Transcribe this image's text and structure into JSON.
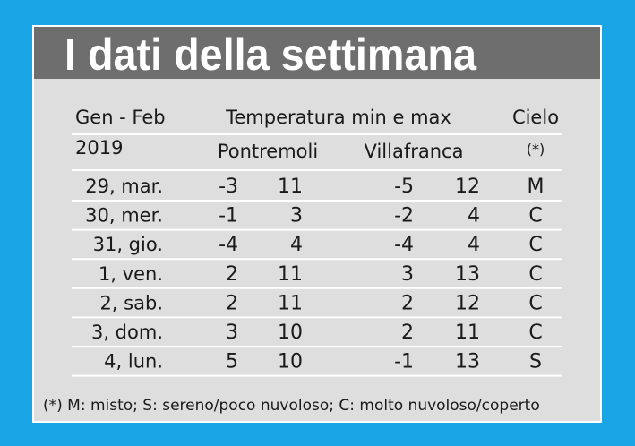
{
  "title": "I dati della settimana",
  "header": {
    "period": "Gen - Feb",
    "temperature": "Temperatura min e max",
    "sky": "Cielo"
  },
  "subheader": {
    "year": "2019",
    "locations": [
      "Pontremoli",
      "Villafranca"
    ],
    "sky_note": "(*)"
  },
  "rows": [
    [
      "29, mar.",
      -3,
      11,
      -5,
      12,
      "M"
    ],
    [
      "30, mer.",
      -1,
      3,
      -2,
      4,
      "C"
    ],
    [
      "31, gio.",
      -4,
      4,
      -4,
      4,
      "C"
    ],
    [
      "1, ven.",
      2,
      11,
      3,
      13,
      "C"
    ],
    [
      "2, sab.",
      2,
      11,
      2,
      12,
      "C"
    ],
    [
      "3, dom.",
      3,
      10,
      2,
      11,
      "C"
    ],
    [
      "4, lun.",
      5,
      10,
      -1,
      13,
      "S"
    ]
  ],
  "footnote": "(*) M: misto; S: sereno/poco nuvoloso; C: molto nuvoloso/coperto"
}
